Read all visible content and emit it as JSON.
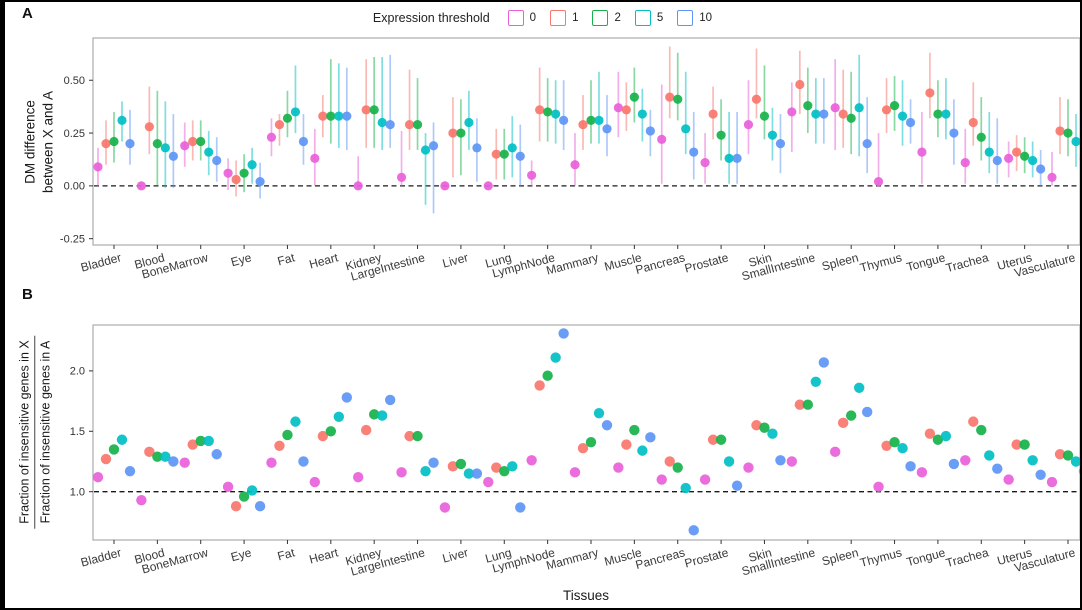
{
  "figure": {
    "panel_a_label": "A",
    "panel_b_label": "B"
  },
  "legend": {
    "title": "Expression threshold",
    "items": [
      {
        "label": "0",
        "color": "#E95FD9"
      },
      {
        "label": "1",
        "color": "#F8766D"
      },
      {
        "label": "2",
        "color": "#17B24A"
      },
      {
        "label": "5",
        "color": "#00BFC4"
      },
      {
        "label": "10",
        "color": "#5D96F5"
      }
    ]
  },
  "chart_data": [
    {
      "id": "A",
      "type": "pointrange",
      "title": "",
      "ylabel_lines": [
        "DM difference",
        "between X and A"
      ],
      "categories": [
        "Bladder",
        "Blood",
        "BoneMarrow",
        "Eye",
        "Fat",
        "Heart",
        "Kidney",
        "LargeIntestine",
        "Liver",
        "Lung",
        "LymphNode",
        "Mammary",
        "Muscle",
        "Pancreas",
        "Prostate",
        "Skin",
        "SmallIntestine",
        "Spleen",
        "Thymus",
        "Tongue",
        "Trachea",
        "Uterus",
        "Vasculature"
      ],
      "ytick_values": [
        -0.25,
        0.0,
        0.25,
        0.5
      ],
      "ytick_labels": [
        "-0.25",
        "0.00",
        "0.25",
        "0.50"
      ],
      "ylim": [
        -0.28,
        0.7
      ],
      "hline": 0.0,
      "grid": false,
      "legend_position": "top",
      "series": [
        {
          "name": "0",
          "color": "#E95FD9",
          "values": [
            0.09,
            0.0,
            0.19,
            0.06,
            0.23,
            0.13,
            0.0,
            0.04,
            0.0,
            0.0,
            0.05,
            0.1,
            0.37,
            0.22,
            0.11,
            0.29,
            0.35,
            0.37,
            0.02,
            0.16,
            0.11,
            0.13,
            0.04
          ],
          "lo": [
            0.0,
            -0.01,
            0.09,
            -0.02,
            0.14,
            0.0,
            0.0,
            0.0,
            -0.01,
            -0.01,
            0.0,
            0.0,
            0.23,
            0.01,
            0.01,
            0.15,
            0.16,
            0.17,
            0.0,
            0.01,
            0.01,
            0.04,
            0.0
          ],
          "hi": [
            0.18,
            0.02,
            0.3,
            0.13,
            0.32,
            0.27,
            0.14,
            0.26,
            0.02,
            0.02,
            0.12,
            0.25,
            0.54,
            0.48,
            0.25,
            0.5,
            0.49,
            0.6,
            0.25,
            0.35,
            0.27,
            0.21,
            0.16
          ]
        },
        {
          "name": "1",
          "color": "#F8766D",
          "values": [
            0.2,
            0.28,
            0.21,
            0.03,
            0.29,
            0.33,
            0.36,
            0.29,
            0.25,
            0.15,
            0.36,
            0.29,
            0.36,
            0.42,
            0.34,
            0.41,
            0.48,
            0.34,
            0.36,
            0.44,
            0.3,
            0.16,
            0.26
          ],
          "lo": [
            0.1,
            0.15,
            0.12,
            -0.05,
            0.19,
            0.23,
            0.18,
            0.17,
            0.04,
            0.03,
            0.21,
            0.17,
            0.26,
            0.32,
            0.22,
            0.32,
            0.34,
            0.18,
            0.25,
            0.32,
            0.19,
            0.07,
            0.15
          ],
          "hi": [
            0.31,
            0.47,
            0.31,
            0.12,
            0.34,
            0.43,
            0.6,
            0.55,
            0.42,
            0.27,
            0.56,
            0.43,
            0.49,
            0.66,
            0.47,
            0.65,
            0.64,
            0.55,
            0.51,
            0.63,
            0.49,
            0.24,
            0.42
          ]
        },
        {
          "name": "2",
          "color": "#17B24A",
          "values": [
            0.21,
            0.2,
            0.21,
            0.06,
            0.32,
            0.33,
            0.36,
            0.29,
            0.25,
            0.15,
            0.35,
            0.31,
            0.42,
            0.41,
            0.24,
            0.33,
            0.38,
            0.32,
            0.38,
            0.34,
            0.23,
            0.14,
            0.25
          ],
          "lo": [
            0.11,
            0.0,
            0.12,
            -0.03,
            0.23,
            0.2,
            0.18,
            0.17,
            0.05,
            0.03,
            0.21,
            0.2,
            0.3,
            0.31,
            0.12,
            0.22,
            0.25,
            0.15,
            0.26,
            0.23,
            0.12,
            0.06,
            0.14
          ],
          "hi": [
            0.35,
            0.45,
            0.31,
            0.15,
            0.45,
            0.6,
            0.61,
            0.51,
            0.41,
            0.27,
            0.51,
            0.5,
            0.56,
            0.63,
            0.41,
            0.57,
            0.56,
            0.54,
            0.52,
            0.5,
            0.42,
            0.23,
            0.41
          ]
        },
        {
          "name": "5",
          "color": "#00BFC4",
          "values": [
            0.31,
            0.18,
            0.16,
            0.1,
            0.35,
            0.33,
            0.3,
            0.17,
            0.3,
            0.18,
            0.34,
            0.31,
            0.34,
            0.27,
            0.13,
            0.24,
            0.34,
            0.37,
            0.33,
            0.34,
            0.16,
            0.12,
            0.21
          ],
          "lo": [
            0.21,
            -0.01,
            0.05,
            0.01,
            0.25,
            0.18,
            0.17,
            -0.09,
            0.17,
            0.04,
            0.2,
            0.2,
            0.21,
            0.15,
            0.01,
            0.12,
            0.2,
            0.14,
            0.19,
            0.22,
            0.06,
            0.04,
            0.09
          ],
          "hi": [
            0.4,
            0.4,
            0.26,
            0.18,
            0.57,
            0.58,
            0.61,
            0.25,
            0.45,
            0.33,
            0.5,
            0.54,
            0.46,
            0.54,
            0.35,
            0.37,
            0.51,
            0.62,
            0.5,
            0.51,
            0.35,
            0.21,
            0.34
          ]
        },
        {
          "name": "10",
          "color": "#5D96F5",
          "values": [
            0.2,
            0.14,
            0.12,
            0.02,
            0.21,
            0.33,
            0.29,
            0.19,
            0.18,
            0.14,
            0.31,
            0.27,
            0.26,
            0.16,
            0.13,
            0.2,
            0.34,
            0.2,
            0.3,
            0.25,
            0.12,
            0.08,
            0.13
          ],
          "lo": [
            0.1,
            -0.01,
            0.02,
            -0.06,
            0.1,
            0.17,
            0.18,
            -0.13,
            0.02,
            0.0,
            0.17,
            0.14,
            0.14,
            0.03,
            0.01,
            0.06,
            0.2,
            0.06,
            0.2,
            0.1,
            0.01,
            0.0,
            0.03
          ],
          "hi": [
            0.36,
            0.34,
            0.23,
            0.11,
            0.34,
            0.56,
            0.62,
            0.3,
            0.32,
            0.29,
            0.5,
            0.43,
            0.36,
            0.35,
            0.35,
            0.34,
            0.51,
            0.42,
            0.41,
            0.41,
            0.32,
            0.17,
            0.26
          ]
        }
      ]
    },
    {
      "id": "B",
      "type": "scatter",
      "title": "",
      "ylabel_numerator": "Fraction of insensitive genes in X",
      "ylabel_denominator": "Fraction of insensitive genes in A",
      "xlabel": "Tissues",
      "categories": [
        "Bladder",
        "Blood",
        "BoneMarrow",
        "Eye",
        "Fat",
        "Heart",
        "Kidney",
        "LargeIntestine",
        "Liver",
        "Lung",
        "LymphNode",
        "Mammary",
        "Muscle",
        "Pancreas",
        "Prostate",
        "Skin",
        "SmallIntestine",
        "Spleen",
        "Thymus",
        "Tongue",
        "Trachea",
        "Uterus",
        "Vasculature"
      ],
      "ytick_values": [
        1.0,
        1.5,
        2.0
      ],
      "ytick_labels": [
        "1.0",
        "1.5",
        "2.0"
      ],
      "ylim": [
        0.6,
        2.38
      ],
      "hline": 1.0,
      "grid": false,
      "series": [
        {
          "name": "0",
          "color": "#E95FD9",
          "values": [
            1.12,
            0.93,
            1.24,
            1.04,
            1.24,
            1.08,
            1.12,
            1.16,
            0.87,
            1.08,
            1.26,
            1.16,
            1.2,
            1.1,
            1.1,
            1.2,
            1.25,
            1.33,
            1.04,
            1.16,
            1.26,
            1.1,
            1.08
          ]
        },
        {
          "name": "1",
          "color": "#F8766D",
          "values": [
            1.27,
            1.33,
            1.39,
            0.88,
            1.38,
            1.46,
            1.51,
            1.46,
            1.21,
            1.2,
            1.88,
            1.36,
            1.39,
            1.25,
            1.43,
            1.55,
            1.72,
            1.57,
            1.38,
            1.48,
            1.58,
            1.39,
            1.31
          ]
        },
        {
          "name": "2",
          "color": "#17B24A",
          "values": [
            1.35,
            1.29,
            1.42,
            0.96,
            1.47,
            1.5,
            1.64,
            1.46,
            1.23,
            1.17,
            1.96,
            1.41,
            1.51,
            1.2,
            1.43,
            1.53,
            1.72,
            1.63,
            1.41,
            1.43,
            1.51,
            1.39,
            1.3
          ]
        },
        {
          "name": "5",
          "color": "#00BFC4",
          "values": [
            1.43,
            1.29,
            1.42,
            1.01,
            1.58,
            1.62,
            1.63,
            1.17,
            1.15,
            1.21,
            2.11,
            1.65,
            1.34,
            1.03,
            1.25,
            1.48,
            1.91,
            1.86,
            1.36,
            1.46,
            1.3,
            1.26,
            1.25
          ]
        },
        {
          "name": "10",
          "color": "#5D96F5",
          "values": [
            1.17,
            1.25,
            1.31,
            0.88,
            1.25,
            1.78,
            1.76,
            1.24,
            1.15,
            0.87,
            2.31,
            1.55,
            1.45,
            0.68,
            1.05,
            1.26,
            2.07,
            1.66,
            1.21,
            1.23,
            1.19,
            1.14,
            1.17
          ]
        }
      ]
    }
  ]
}
